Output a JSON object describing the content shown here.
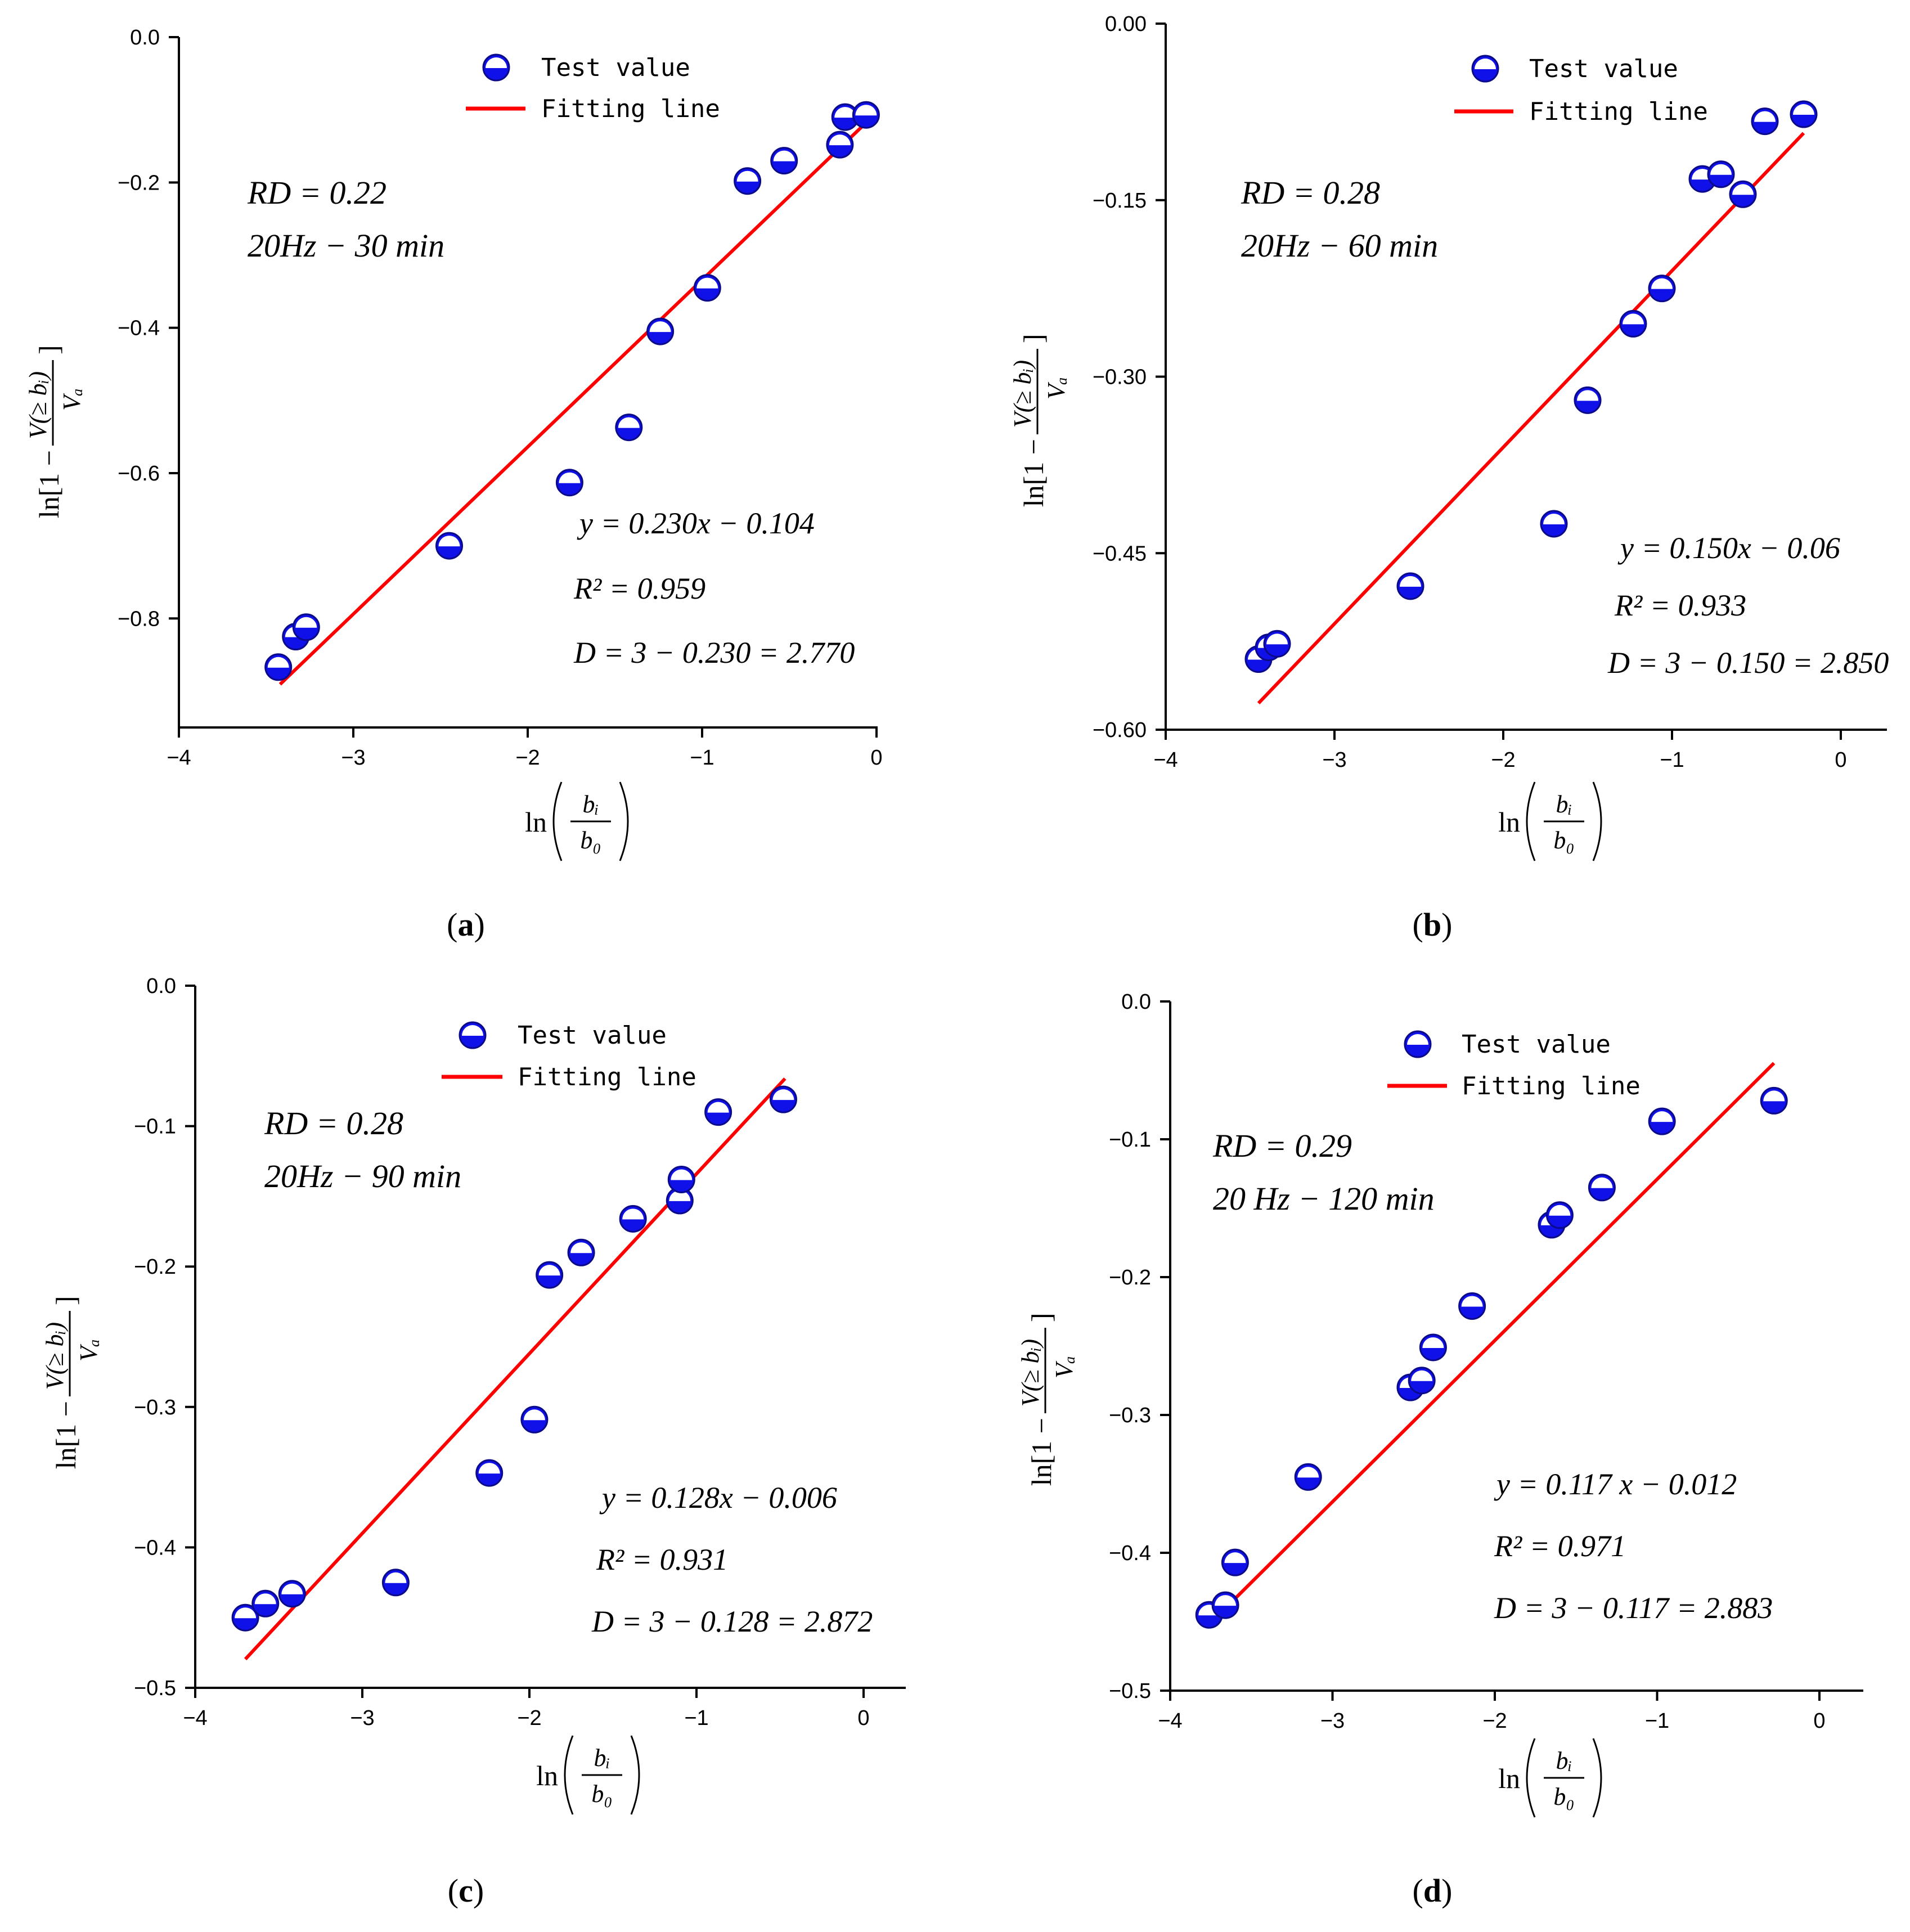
{
  "chart_data": [
    {
      "id": "a",
      "type": "scatter",
      "caption_letter": "a",
      "xlim": [
        -4,
        0
      ],
      "ylim": [
        -0.95,
        0
      ],
      "x_ticks": [
        -4,
        -3,
        -2,
        -1,
        0
      ],
      "x_tick_labels": [
        "−4",
        "−3",
        "−2",
        "−1",
        "0"
      ],
      "y_ticks": [
        0,
        -0.2,
        -0.4,
        -0.6,
        -0.8
      ],
      "y_tick_labels": [
        "0.0",
        "−0.2",
        "−0.4",
        "−0.6",
        "−0.8"
      ],
      "legend": {
        "marker_label": "Test value",
        "line_label": "Fitting line"
      },
      "rd_label": "RD = 0.22",
      "condition_label": "20Hz − 30 min",
      "equation": "y = 0.230x − 0.104",
      "r2": "R² = 0.959",
      "dimension": "D = 3 − 0.230 = 2.770",
      "xlabel_lhs": "ln",
      "xlabel_num": "bᵢ",
      "xlabel_den": "b₀",
      "ylabel_prefix": "ln[1 −",
      "ylabel_num": "V(≥ bᵢ)",
      "ylabel_den": "Vₐ",
      "ylabel_suffix": "]",
      "fit": {
        "slope": 0.23,
        "intercept": -0.104,
        "x_range": [
          -3.42,
          -0.08
        ]
      },
      "points": [
        {
          "x": -3.43,
          "y": -0.867
        },
        {
          "x": -3.33,
          "y": -0.825
        },
        {
          "x": -3.27,
          "y": -0.812
        },
        {
          "x": -2.45,
          "y": -0.7
        },
        {
          "x": -1.76,
          "y": -0.613
        },
        {
          "x": -1.42,
          "y": -0.537
        },
        {
          "x": -1.24,
          "y": -0.405
        },
        {
          "x": -0.97,
          "y": -0.345
        },
        {
          "x": -0.74,
          "y": -0.198
        },
        {
          "x": -0.53,
          "y": -0.17
        },
        {
          "x": -0.21,
          "y": -0.148
        },
        {
          "x": -0.18,
          "y": -0.11
        },
        {
          "x": -0.06,
          "y": -0.107
        }
      ]
    },
    {
      "id": "b",
      "type": "scatter",
      "caption_letter": "b",
      "xlim": [
        -4,
        0.25
      ],
      "ylim": [
        -0.6,
        0
      ],
      "x_ticks": [
        -4,
        -3,
        -2,
        -1,
        0
      ],
      "x_tick_labels": [
        "−4",
        "−3",
        "−2",
        "−1",
        "0"
      ],
      "y_ticks": [
        0,
        -0.15,
        -0.3,
        -0.45,
        -0.6
      ],
      "y_tick_labels": [
        "0.00",
        "−0.15",
        "−0.30",
        "−0.45",
        "−0.60"
      ],
      "legend": {
        "marker_label": "Test value",
        "line_label": "Fitting line"
      },
      "rd_label": "RD = 0.28",
      "condition_label": "20Hz − 60 min",
      "equation": "y = 0.150x − 0.06",
      "r2": "R² = 0.933",
      "dimension": "D = 3 − 0.150 = 2.850",
      "xlabel_lhs": "ln",
      "xlabel_num": "bᵢ",
      "xlabel_den": "b₀",
      "ylabel_prefix": "ln[1 −",
      "ylabel_num": "V(≥ bᵢ)",
      "ylabel_den": "Vₐ",
      "ylabel_suffix": "]",
      "fit": {
        "slope": 0.15,
        "intercept": -0.06,
        "x_range": [
          -3.45,
          -0.22
        ]
      },
      "points": [
        {
          "x": -3.45,
          "y": -0.54
        },
        {
          "x": -3.39,
          "y": -0.53
        },
        {
          "x": -3.34,
          "y": -0.527
        },
        {
          "x": -2.55,
          "y": -0.478
        },
        {
          "x": -1.7,
          "y": -0.425
        },
        {
          "x": -1.5,
          "y": -0.32
        },
        {
          "x": -1.23,
          "y": -0.255
        },
        {
          "x": -1.06,
          "y": -0.225
        },
        {
          "x": -0.82,
          "y": -0.132
        },
        {
          "x": -0.71,
          "y": -0.128
        },
        {
          "x": -0.58,
          "y": -0.145
        },
        {
          "x": -0.45,
          "y": -0.083
        },
        {
          "x": -0.22,
          "y": -0.077
        }
      ]
    },
    {
      "id": "c",
      "type": "scatter",
      "caption_letter": "c",
      "xlim": [
        -4,
        0.25
      ],
      "ylim": [
        -0.5,
        0
      ],
      "x_ticks": [
        -4,
        -3,
        -2,
        -1,
        0
      ],
      "x_tick_labels": [
        "−4",
        "−3",
        "−2",
        "−1",
        "0"
      ],
      "y_ticks": [
        0,
        -0.1,
        -0.2,
        -0.3,
        -0.4,
        -0.5
      ],
      "y_tick_labels": [
        "0.0",
        "−0.1",
        "−0.2",
        "−0.3",
        "−0.4",
        "−0.5"
      ],
      "legend": {
        "marker_label": "Test value",
        "line_label": "Fitting line"
      },
      "rd_label": "RD = 0.28",
      "condition_label": "20Hz − 90 min",
      "equation": "y = 0.128x − 0.006",
      "r2": "R² = 0.931",
      "dimension": "D = 3 − 0.128 = 2.872",
      "xlabel_lhs": "ln",
      "xlabel_num": "bᵢ",
      "xlabel_den": "b₀",
      "ylabel_prefix": "ln[1 −",
      "ylabel_num": "V(≥ bᵢ)",
      "ylabel_den": "Vₐ",
      "ylabel_suffix": "]",
      "fit": {
        "slope": 0.128,
        "intercept": -0.006,
        "x_range": [
          -3.7,
          -0.47
        ]
      },
      "points": [
        {
          "x": -3.7,
          "y": -0.45
        },
        {
          "x": -3.58,
          "y": -0.44
        },
        {
          "x": -3.42,
          "y": -0.433
        },
        {
          "x": -2.8,
          "y": -0.425
        },
        {
          "x": -2.24,
          "y": -0.347
        },
        {
          "x": -1.97,
          "y": -0.309
        },
        {
          "x": -1.88,
          "y": -0.206
        },
        {
          "x": -1.69,
          "y": -0.19
        },
        {
          "x": -1.38,
          "y": -0.166
        },
        {
          "x": -1.1,
          "y": -0.153
        },
        {
          "x": -1.09,
          "y": -0.138
        },
        {
          "x": -0.87,
          "y": -0.09
        },
        {
          "x": -0.48,
          "y": -0.081
        }
      ]
    },
    {
      "id": "d",
      "type": "scatter",
      "caption_letter": "d",
      "xlim": [
        -4,
        0.25
      ],
      "ylim": [
        -0.5,
        0
      ],
      "x_ticks": [
        -4,
        -3,
        -2,
        -1,
        0
      ],
      "x_tick_labels": [
        "−4",
        "−3",
        "−2",
        "−1",
        "0"
      ],
      "y_ticks": [
        0,
        -0.1,
        -0.2,
        -0.3,
        -0.4,
        -0.5
      ],
      "y_tick_labels": [
        "0.0",
        "−0.1",
        "−0.2",
        "−0.3",
        "−0.4",
        "−0.5"
      ],
      "legend": {
        "marker_label": "Test value",
        "line_label": "Fitting line"
      },
      "rd_label": "RD = 0.29",
      "condition_label": "20 Hz − 120 min",
      "equation": "y = 0.117 x − 0.012",
      "r2": "R² = 0.971",
      "dimension": "D = 3 − 0.117 = 2.883",
      "xlabel_lhs": "ln",
      "xlabel_num": "bᵢ",
      "xlabel_den": "b₀",
      "ylabel_prefix": "ln[1 −",
      "ylabel_num": "V(≥ bᵢ)",
      "ylabel_den": "Vₐ",
      "ylabel_suffix": "]",
      "fit": {
        "slope": 0.117,
        "intercept": -0.012,
        "x_range": [
          -3.75,
          -0.28
        ]
      },
      "points": [
        {
          "x": -3.76,
          "y": -0.445
        },
        {
          "x": -3.66,
          "y": -0.438
        },
        {
          "x": -3.6,
          "y": -0.407
        },
        {
          "x": -3.15,
          "y": -0.345
        },
        {
          "x": -2.52,
          "y": -0.28
        },
        {
          "x": -2.45,
          "y": -0.275
        },
        {
          "x": -2.38,
          "y": -0.251
        },
        {
          "x": -2.14,
          "y": -0.221
        },
        {
          "x": -1.65,
          "y": -0.162
        },
        {
          "x": -1.6,
          "y": -0.155
        },
        {
          "x": -1.34,
          "y": -0.135
        },
        {
          "x": -0.97,
          "y": -0.087
        },
        {
          "x": -0.28,
          "y": -0.072
        }
      ]
    }
  ],
  "colors": {
    "marker_fill": "#1010e8",
    "marker_edge": "#0a0a8a",
    "marker_highlight": "#ffffff",
    "fit_line": "#ff0000",
    "axis": "#000000"
  }
}
